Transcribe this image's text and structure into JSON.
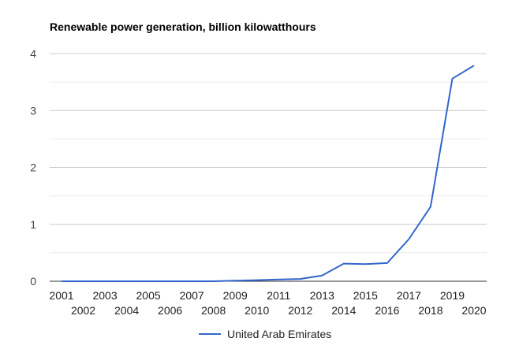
{
  "chart_data": {
    "type": "line",
    "title": "Renewable power generation, billion kilowatthours",
    "xlabel": "",
    "ylabel": "",
    "x": [
      "2001",
      "2002",
      "2003",
      "2004",
      "2005",
      "2006",
      "2007",
      "2008",
      "2009",
      "2010",
      "2011",
      "2012",
      "2013",
      "2014",
      "2015",
      "2016",
      "2017",
      "2018",
      "2019",
      "2020"
    ],
    "yticks": [
      "0",
      "1",
      "2",
      "3",
      "4"
    ],
    "ylim": [
      0,
      4
    ],
    "grid": true,
    "legend_position": "bottom",
    "series": [
      {
        "name": "United Arab Emirates",
        "color": "#3366cc",
        "values": [
          0,
          0,
          0,
          0,
          0,
          0,
          0,
          0,
          0.01,
          0.02,
          0.03,
          0.04,
          0.1,
          0.31,
          0.3,
          0.32,
          0.74,
          1.31,
          3.56,
          3.79
        ]
      }
    ]
  }
}
